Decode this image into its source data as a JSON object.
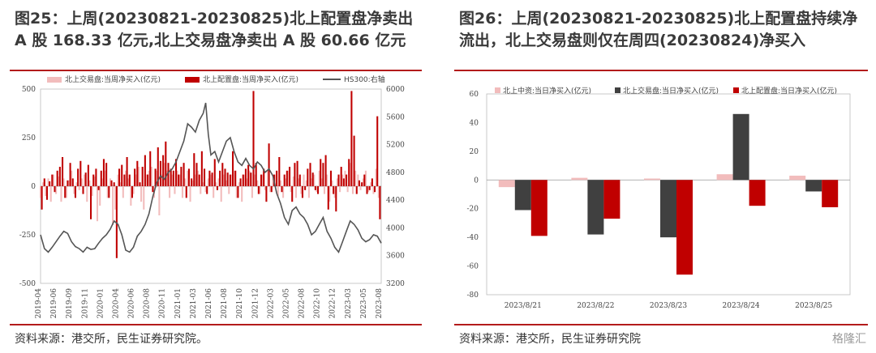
{
  "left": {
    "title": "图25：上周(20230821-20230825)北上配置盘净卖出 A 股 168.33 亿元,北上交易盘净卖出 A 股 60.66 亿元",
    "source": "资料来源：港交所，民生证券研究院。",
    "chart_data": {
      "type": "bar",
      "legend": [
        "北上交易盘:当周净买入(亿元)",
        "北上配置盘:当周净买入(亿元)",
        "HS300:右轴"
      ],
      "y_left_ticks": [
        500,
        250,
        0,
        -250,
        -500
      ],
      "y_left_range": [
        -500,
        500
      ],
      "y_right_ticks": [
        6000,
        5600,
        5200,
        4800,
        4400,
        4000,
        3600,
        3200
      ],
      "y_right_range": [
        3200,
        6000
      ],
      "x_ticks": [
        "2019-04",
        "2019-06",
        "2019-09",
        "2019-11",
        "2020-01",
        "2020-04",
        "2020-06",
        "2020-08",
        "2020-11",
        "2021-01",
        "2021-03",
        "2021-06",
        "2021-08",
        "2021-10",
        "2021-12",
        "2022-03",
        "2022-05",
        "2022-08",
        "2022-10",
        "2022-12",
        "2023-03",
        "2023-05",
        "2023-08"
      ],
      "colors": {
        "trading": "#f2bcbc",
        "allocation": "#c00000",
        "hs300": "#555555"
      },
      "hs300_points": [
        [
          0,
          3900
        ],
        [
          3,
          3700
        ],
        [
          6,
          3650
        ],
        [
          9,
          3720
        ],
        [
          12,
          3800
        ],
        [
          15,
          3880
        ],
        [
          18,
          3950
        ],
        [
          21,
          3920
        ],
        [
          24,
          3800
        ],
        [
          27,
          3730
        ],
        [
          30,
          3700
        ],
        [
          33,
          3650
        ],
        [
          36,
          3720
        ],
        [
          39,
          3690
        ],
        [
          42,
          3700
        ],
        [
          45,
          3780
        ],
        [
          48,
          3850
        ],
        [
          51,
          3900
        ],
        [
          54,
          3980
        ],
        [
          57,
          4100
        ],
        [
          60,
          4050
        ],
        [
          63,
          3900
        ],
        [
          66,
          3680
        ],
        [
          69,
          3650
        ],
        [
          72,
          3720
        ],
        [
          75,
          3880
        ],
        [
          78,
          3950
        ],
        [
          81,
          4050
        ],
        [
          84,
          4200
        ],
        [
          87,
          4450
        ],
        [
          90,
          4650
        ],
        [
          93,
          4750
        ],
        [
          96,
          4700
        ],
        [
          99,
          4800
        ],
        [
          102,
          4850
        ],
        [
          105,
          4950
        ],
        [
          108,
          5100
        ],
        [
          111,
          5250
        ],
        [
          114,
          5500
        ],
        [
          117,
          5450
        ],
        [
          120,
          5380
        ],
        [
          123,
          5550
        ],
        [
          126,
          5650
        ],
        [
          128,
          5800
        ],
        [
          130,
          5350
        ],
        [
          132,
          5050
        ],
        [
          135,
          5100
        ],
        [
          138,
          4950
        ],
        [
          141,
          5100
        ],
        [
          144,
          5250
        ],
        [
          147,
          5300
        ],
        [
          150,
          5100
        ],
        [
          153,
          4950
        ],
        [
          156,
          4900
        ],
        [
          159,
          5000
        ],
        [
          162,
          4900
        ],
        [
          165,
          4850
        ],
        [
          168,
          4950
        ],
        [
          171,
          4900
        ],
        [
          174,
          4800
        ],
        [
          177,
          4850
        ],
        [
          180,
          4750
        ],
        [
          183,
          4500
        ],
        [
          186,
          4350
        ],
        [
          189,
          4150
        ],
        [
          192,
          4050
        ],
        [
          195,
          4250
        ],
        [
          198,
          4300
        ],
        [
          201,
          4200
        ],
        [
          204,
          4150
        ],
        [
          207,
          4050
        ],
        [
          210,
          3900
        ],
        [
          213,
          3950
        ],
        [
          216,
          4050
        ],
        [
          219,
          4150
        ],
        [
          222,
          3950
        ],
        [
          225,
          3850
        ],
        [
          228,
          3720
        ],
        [
          231,
          3650
        ],
        [
          234,
          3800
        ],
        [
          237,
          3950
        ],
        [
          240,
          4100
        ],
        [
          243,
          4050
        ],
        [
          246,
          3970
        ],
        [
          249,
          3850
        ],
        [
          252,
          3800
        ],
        [
          255,
          3830
        ],
        [
          258,
          3900
        ],
        [
          261,
          3880
        ],
        [
          264,
          3780
        ]
      ],
      "allocation_bars": [
        [
          1,
          -120
        ],
        [
          3,
          40
        ],
        [
          5,
          -70
        ],
        [
          7,
          25
        ],
        [
          9,
          60
        ],
        [
          11,
          -30
        ],
        [
          13,
          80
        ],
        [
          15,
          100
        ],
        [
          17,
          150
        ],
        [
          19,
          -60
        ],
        [
          21,
          30
        ],
        [
          23,
          120
        ],
        [
          25,
          40
        ],
        [
          27,
          -60
        ],
        [
          29,
          90
        ],
        [
          31,
          130
        ],
        [
          33,
          -40
        ],
        [
          35,
          70
        ],
        [
          37,
          110
        ],
        [
          39,
          -170
        ],
        [
          41,
          60
        ],
        [
          43,
          90
        ],
        [
          45,
          -20
        ],
        [
          47,
          80
        ],
        [
          49,
          140
        ],
        [
          51,
          120
        ],
        [
          53,
          -60
        ],
        [
          55,
          30
        ],
        [
          57,
          20
        ],
        [
          59,
          -370
        ],
        [
          61,
          90
        ],
        [
          63,
          110
        ],
        [
          65,
          60
        ],
        [
          67,
          150
        ],
        [
          69,
          60
        ],
        [
          71,
          -60
        ],
        [
          73,
          90
        ],
        [
          75,
          130
        ],
        [
          77,
          20
        ],
        [
          79,
          100
        ],
        [
          81,
          160
        ],
        [
          83,
          60
        ],
        [
          85,
          180
        ],
        [
          87,
          -30
        ],
        [
          89,
          90
        ],
        [
          91,
          200
        ],
        [
          93,
          130
        ],
        [
          95,
          160
        ],
        [
          97,
          230
        ],
        [
          99,
          120
        ],
        [
          101,
          90
        ],
        [
          103,
          80
        ],
        [
          105,
          140
        ],
        [
          107,
          60
        ],
        [
          109,
          100
        ],
        [
          111,
          120
        ],
        [
          113,
          -60
        ],
        [
          115,
          90
        ],
        [
          117,
          40
        ],
        [
          119,
          170
        ],
        [
          121,
          120
        ],
        [
          123,
          60
        ],
        [
          125,
          180
        ],
        [
          127,
          90
        ],
        [
          129,
          -40
        ],
        [
          131,
          80
        ],
        [
          133,
          70
        ],
        [
          135,
          140
        ],
        [
          137,
          -20
        ],
        [
          139,
          80
        ],
        [
          141,
          120
        ],
        [
          143,
          90
        ],
        [
          145,
          70
        ],
        [
          147,
          60
        ],
        [
          149,
          180
        ],
        [
          151,
          80
        ],
        [
          153,
          -60
        ],
        [
          155,
          40
        ],
        [
          157,
          60
        ],
        [
          159,
          90
        ],
        [
          161,
          110
        ],
        [
          163,
          70
        ],
        [
          165,
          490
        ],
        [
          167,
          120
        ],
        [
          169,
          -40
        ],
        [
          171,
          60
        ],
        [
          173,
          90
        ],
        [
          175,
          -80
        ],
        [
          177,
          220
        ],
        [
          179,
          -30
        ],
        [
          181,
          60
        ],
        [
          183,
          80
        ],
        [
          185,
          150
        ],
        [
          187,
          -30
        ],
        [
          189,
          60
        ],
        [
          191,
          80
        ],
        [
          193,
          100
        ],
        [
          195,
          -80
        ],
        [
          197,
          120
        ],
        [
          199,
          130
        ],
        [
          201,
          60
        ],
        [
          203,
          -60
        ],
        [
          205,
          -20
        ],
        [
          207,
          90
        ],
        [
          209,
          120
        ],
        [
          211,
          70
        ],
        [
          213,
          -20
        ],
        [
          215,
          -40
        ],
        [
          217,
          140
        ],
        [
          219,
          120
        ],
        [
          221,
          160
        ],
        [
          223,
          -120
        ],
        [
          225,
          80
        ],
        [
          227,
          -40
        ],
        [
          229,
          -130
        ],
        [
          231,
          60
        ],
        [
          233,
          100
        ],
        [
          235,
          40
        ],
        [
          237,
          60
        ],
        [
          239,
          140
        ],
        [
          241,
          490
        ],
        [
          243,
          260
        ],
        [
          245,
          -40
        ],
        [
          247,
          30
        ],
        [
          249,
          20
        ],
        [
          251,
          60
        ],
        [
          253,
          -40
        ],
        [
          255,
          -20
        ],
        [
          257,
          40
        ],
        [
          259,
          -30
        ],
        [
          261,
          360
        ],
        [
          263,
          -170
        ]
      ],
      "trading_bars": [
        [
          0,
          -60
        ],
        [
          2,
          20
        ],
        [
          4,
          -50
        ],
        [
          6,
          40
        ],
        [
          8,
          -80
        ],
        [
          10,
          60
        ],
        [
          12,
          -40
        ],
        [
          14,
          50
        ],
        [
          16,
          -80
        ],
        [
          18,
          40
        ],
        [
          20,
          -60
        ],
        [
          22,
          30
        ],
        [
          24,
          80
        ],
        [
          26,
          -40
        ],
        [
          28,
          20
        ],
        [
          30,
          -20
        ],
        [
          32,
          40
        ],
        [
          34,
          60
        ],
        [
          36,
          -80
        ],
        [
          38,
          30
        ],
        [
          40,
          -50
        ],
        [
          42,
          50
        ],
        [
          44,
          -180
        ],
        [
          46,
          -100
        ],
        [
          48,
          40
        ],
        [
          50,
          80
        ],
        [
          52,
          -60
        ],
        [
          54,
          40
        ],
        [
          56,
          -200
        ],
        [
          58,
          -120
        ],
        [
          60,
          60
        ],
        [
          62,
          20
        ],
        [
          64,
          -60
        ],
        [
          66,
          80
        ],
        [
          68,
          40
        ],
        [
          70,
          -100
        ],
        [
          72,
          -40
        ],
        [
          74,
          60
        ],
        [
          76,
          100
        ],
        [
          78,
          -80
        ],
        [
          80,
          -120
        ],
        [
          82,
          60
        ],
        [
          84,
          80
        ],
        [
          86,
          100
        ],
        [
          88,
          -60
        ],
        [
          90,
          80
        ],
        [
          92,
          -150
        ],
        [
          94,
          60
        ],
        [
          96,
          120
        ],
        [
          98,
          80
        ],
        [
          100,
          -60
        ],
        [
          102,
          60
        ],
        [
          104,
          -40
        ],
        [
          106,
          80
        ],
        [
          108,
          60
        ],
        [
          110,
          -60
        ],
        [
          112,
          40
        ],
        [
          114,
          80
        ],
        [
          116,
          -80
        ],
        [
          118,
          30
        ],
        [
          120,
          60
        ],
        [
          122,
          80
        ],
        [
          124,
          -40
        ],
        [
          126,
          20
        ],
        [
          128,
          -30
        ],
        [
          130,
          40
        ],
        [
          132,
          60
        ],
        [
          134,
          -60
        ],
        [
          136,
          20
        ],
        [
          138,
          40
        ],
        [
          140,
          -80
        ],
        [
          142,
          60
        ],
        [
          144,
          30
        ],
        [
          146,
          -40
        ],
        [
          148,
          60
        ],
        [
          150,
          80
        ],
        [
          152,
          -60
        ],
        [
          154,
          20
        ],
        [
          156,
          -80
        ],
        [
          158,
          60
        ],
        [
          160,
          40
        ],
        [
          162,
          80
        ],
        [
          164,
          -60
        ],
        [
          166,
          60
        ],
        [
          168,
          30
        ],
        [
          170,
          -40
        ],
        [
          172,
          60
        ],
        [
          174,
          -20
        ],
        [
          176,
          80
        ],
        [
          178,
          -30
        ],
        [
          180,
          40
        ],
        [
          182,
          60
        ],
        [
          184,
          -50
        ],
        [
          186,
          30
        ],
        [
          188,
          -60
        ],
        [
          190,
          40
        ],
        [
          192,
          80
        ],
        [
          194,
          -30
        ],
        [
          196,
          50
        ],
        [
          198,
          -60
        ],
        [
          200,
          40
        ],
        [
          202,
          -40
        ],
        [
          204,
          60
        ],
        [
          206,
          30
        ],
        [
          208,
          -60
        ],
        [
          210,
          40
        ],
        [
          212,
          60
        ],
        [
          214,
          -30
        ],
        [
          216,
          80
        ],
        [
          218,
          40
        ],
        [
          220,
          -40
        ],
        [
          222,
          60
        ],
        [
          224,
          -80
        ],
        [
          226,
          30
        ],
        [
          228,
          -60
        ],
        [
          230,
          40
        ],
        [
          232,
          -30
        ],
        [
          234,
          60
        ],
        [
          236,
          80
        ],
        [
          238,
          -30
        ],
        [
          240,
          120
        ],
        [
          242,
          -40
        ],
        [
          244,
          80
        ],
        [
          246,
          60
        ],
        [
          248,
          -20
        ],
        [
          250,
          40
        ],
        [
          252,
          80
        ],
        [
          254,
          -30
        ],
        [
          256,
          20
        ],
        [
          258,
          -40
        ],
        [
          260,
          90
        ],
        [
          262,
          -60
        ]
      ]
    }
  },
  "right": {
    "title": "图26：上周(20230821-20230825)北上配置盘持续净流出，北上交易盘则仅在周四(20230824)净买入",
    "source": "资料来源：港交所，民生证券研究院",
    "chart_data": {
      "type": "bar",
      "categories": [
        "2023/8/21",
        "2023/8/22",
        "2023/8/23",
        "2023/8/24",
        "2023/8/25"
      ],
      "series": [
        {
          "name": "北上中资:当日净买入(亿元)",
          "values": [
            -5,
            1.5,
            1,
            4,
            3
          ],
          "color": "#f2bcbc"
        },
        {
          "name": "北上交易盘:当日净买入(亿元)",
          "values": [
            -21,
            -38,
            -40,
            46,
            -8
          ],
          "color": "#404040"
        },
        {
          "name": "北上配置盘:当日净买入(亿元)",
          "values": [
            -39,
            -27,
            -66,
            -18,
            -19
          ],
          "color": "#c00000"
        }
      ],
      "y_ticks": [
        60,
        40,
        20,
        0,
        -20,
        -40,
        -60,
        -80
      ],
      "ylim": [
        -80,
        60
      ]
    }
  },
  "watermark": "格隆汇"
}
